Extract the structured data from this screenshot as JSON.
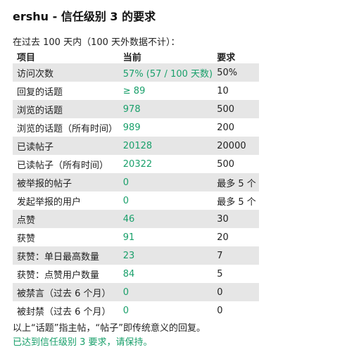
{
  "title": "ershu - 信任级别 3 的要求",
  "intro": "在过去 100 天内（100 天外数据不计）：",
  "table": {
    "headers": [
      "项目",
      "当前",
      "要求"
    ],
    "rows": [
      {
        "item": "访问次数",
        "current": "57% (57 / 100 天数)",
        "required": "50%"
      },
      {
        "item": "回复的话题",
        "current": "≥ 89",
        "required": "10"
      },
      {
        "item": "浏览的话题",
        "current": "978",
        "required": "500"
      },
      {
        "item": "浏览的话题（所有时间）",
        "current": "989",
        "required": "200"
      },
      {
        "item": "已读帖子",
        "current": "20128",
        "required": "20000"
      },
      {
        "item": "已读帖子（所有时间）",
        "current": "20322",
        "required": "500"
      },
      {
        "item": "被举报的帖子",
        "current": "0",
        "required": "最多 5 个"
      },
      {
        "item": "发起举报的用户",
        "current": "0",
        "required": "最多 5 个"
      },
      {
        "item": "点赞",
        "current": "46",
        "required": "30"
      },
      {
        "item": "获赞",
        "current": "91",
        "required": "20"
      },
      {
        "item": "获赞：单日最高数量",
        "current": "23",
        "required": "7"
      },
      {
        "item": "获赞：点赞用户数量",
        "current": "84",
        "required": "5"
      },
      {
        "item": "被禁言（过去 6 个月）",
        "current": "0",
        "required": "0"
      },
      {
        "item": "被封禁（过去 6 个月）",
        "current": "0",
        "required": "0"
      }
    ]
  },
  "note": "以上“话题”指主帖，“帖子”即传统意义的回复。",
  "status": "已达到信任级别 3 要求，请保持。",
  "colors": {
    "met": "#1aa06b",
    "stripe": "#e6e6e6"
  }
}
